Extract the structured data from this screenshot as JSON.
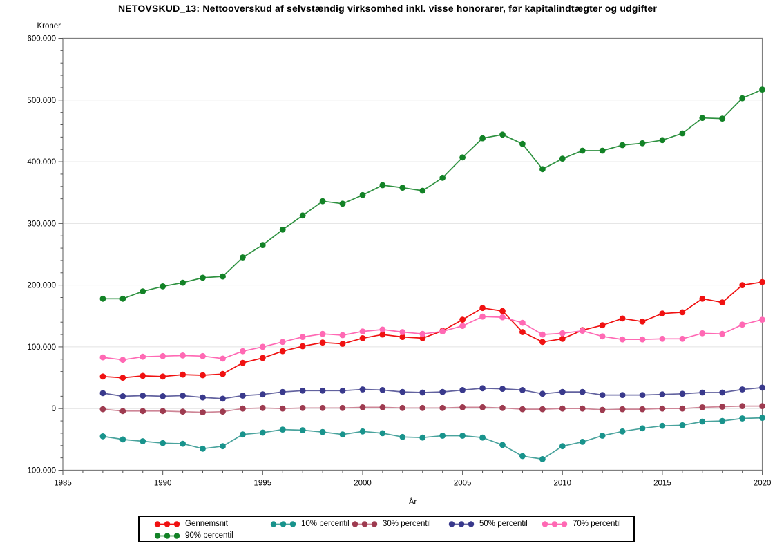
{
  "title": "NETOVSKUD_13: Nettooverskud af selvstændig virksomhed inkl. visse honorarer, før kapitalindtægter og udgifter",
  "chart_data": {
    "type": "line",
    "title": "NETOVSKUD_13: Nettooverskud af selvstændig virksomhed inkl. visse honorarer, før kapitalindtægter og udgifter",
    "y_unit_label": "Kroner",
    "x_label": "År",
    "xlim": [
      1985,
      2020
    ],
    "ylim": [
      -100000,
      600000
    ],
    "x_major_ticks": [
      1985,
      1990,
      1995,
      2000,
      2005,
      2010,
      2015,
      2020
    ],
    "x_tick_labels": [
      "1985",
      "1990",
      "1995",
      "2000",
      "2005",
      "2010",
      "2015",
      "2020"
    ],
    "x_minor_tick_interval": 1,
    "y_major_ticks": [
      600000,
      500000,
      400000,
      300000,
      200000,
      100000,
      0,
      -100000
    ],
    "y_tick_labels": [
      "600.000",
      "500.000",
      "400.000",
      "300.000",
      "200.000",
      "100.000",
      "0",
      "-100.000"
    ],
    "y_minor_tick_interval": 20000,
    "grid": "horizontal-major-only",
    "legend_position": "bottom",
    "x": [
      1987,
      1988,
      1989,
      1990,
      1991,
      1992,
      1993,
      1994,
      1995,
      1996,
      1997,
      1998,
      1999,
      2000,
      2001,
      2002,
      2003,
      2004,
      2005,
      2006,
      2007,
      2008,
      2009,
      2010,
      2011,
      2012,
      2013,
      2014,
      2015,
      2016,
      2017,
      2018,
      2019,
      2020
    ],
    "series": [
      {
        "name": "Gennemsnit",
        "color": "#F01111",
        "line_color": "#F01111",
        "values": [
          52000,
          50000,
          53000,
          52000,
          55000,
          54000,
          56000,
          74000,
          82000,
          93000,
          101000,
          107000,
          105000,
          114000,
          120000,
          116000,
          114000,
          126000,
          144000,
          163000,
          158000,
          124000,
          108000,
          113000,
          127000,
          135000,
          146000,
          141000,
          154000,
          156000,
          178000,
          172000,
          200000,
          205000
        ]
      },
      {
        "name": "10% percentil",
        "color": "#18938C",
        "line_color": "#49A39D",
        "values": [
          -45000,
          -50000,
          -53000,
          -56000,
          -57000,
          -65000,
          -61000,
          -42000,
          -39000,
          -34000,
          -35000,
          -38000,
          -42000,
          -37000,
          -40000,
          -46000,
          -47000,
          -44000,
          -44000,
          -47000,
          -59000,
          -77000,
          -82000,
          -61000,
          -54000,
          -44000,
          -37000,
          -32000,
          -28000,
          -27000,
          -21000,
          -20000,
          -16000,
          -15000
        ]
      },
      {
        "name": "30% percentil",
        "color": "#9E3B50",
        "line_color": "#CE8596",
        "values": [
          -1000,
          -4000,
          -4000,
          -4000,
          -5000,
          -6000,
          -5000,
          0,
          1000,
          0,
          1000,
          1000,
          1000,
          2000,
          2000,
          1000,
          1000,
          1000,
          2000,
          2000,
          1000,
          -1000,
          -1000,
          0,
          0,
          -2000,
          -1000,
          -1000,
          0,
          0,
          2000,
          3000,
          4000,
          4000
        ]
      },
      {
        "name": "50% percentil",
        "color": "#39398C",
        "line_color": "#62629F",
        "values": [
          25000,
          20000,
          21000,
          20000,
          21000,
          18000,
          16000,
          21000,
          23000,
          27000,
          29000,
          29000,
          29000,
          31000,
          30000,
          27000,
          26000,
          27000,
          30000,
          33000,
          32000,
          30000,
          24000,
          27000,
          27000,
          22000,
          22000,
          22000,
          23000,
          24000,
          26000,
          26000,
          31000,
          34000
        ]
      },
      {
        "name": "70% percentil",
        "color": "#FF69B4",
        "line_color": "#FF69B4",
        "values": [
          83000,
          79000,
          84000,
          85000,
          86000,
          85000,
          81000,
          93000,
          100000,
          108000,
          116000,
          121000,
          119000,
          125000,
          128000,
          124000,
          121000,
          125000,
          134000,
          149000,
          148000,
          139000,
          120000,
          122000,
          126000,
          117000,
          112000,
          112000,
          113000,
          113000,
          122000,
          121000,
          136000,
          144000
        ]
      },
      {
        "name": "90% percentil",
        "color": "#128226",
        "line_color": "#2E9140",
        "values": [
          178000,
          178000,
          190000,
          198000,
          204000,
          212000,
          214000,
          245000,
          265000,
          290000,
          313000,
          336000,
          332000,
          346000,
          362000,
          358000,
          353000,
          374000,
          407000,
          438000,
          444000,
          429000,
          388000,
          405000,
          418000,
          418000,
          427000,
          430000,
          435000,
          446000,
          471000,
          470000,
          503000,
          517000
        ]
      }
    ]
  }
}
